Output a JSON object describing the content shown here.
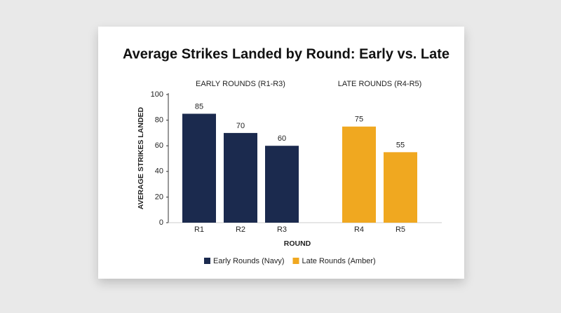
{
  "chart_data": {
    "type": "bar",
    "title": "Average Strikes Landed by Round: Early vs. Late",
    "x_label": "ROUND",
    "y_label": "AVERAGE STRIKES LANDED",
    "annotations": [
      "EARLY ROUNDS (R1-R3)",
      "LATE ROUNDS (R4-R5)"
    ],
    "categories": [
      "R1",
      "R2",
      "R3",
      "R4",
      "R5"
    ],
    "series": [
      {
        "name": "Early Rounds (Navy)",
        "color": "#1b2a4e",
        "values": [
          85,
          70,
          60,
          null,
          null
        ]
      },
      {
        "name": "Late Rounds (Amber)",
        "color": "#f0a820",
        "values": [
          null,
          null,
          null,
          75,
          55
        ]
      }
    ],
    "ylim": [
      0,
      100
    ],
    "yticks": [
      0,
      20,
      40,
      60,
      80,
      100
    ],
    "grid": false,
    "legend": "bottom"
  }
}
